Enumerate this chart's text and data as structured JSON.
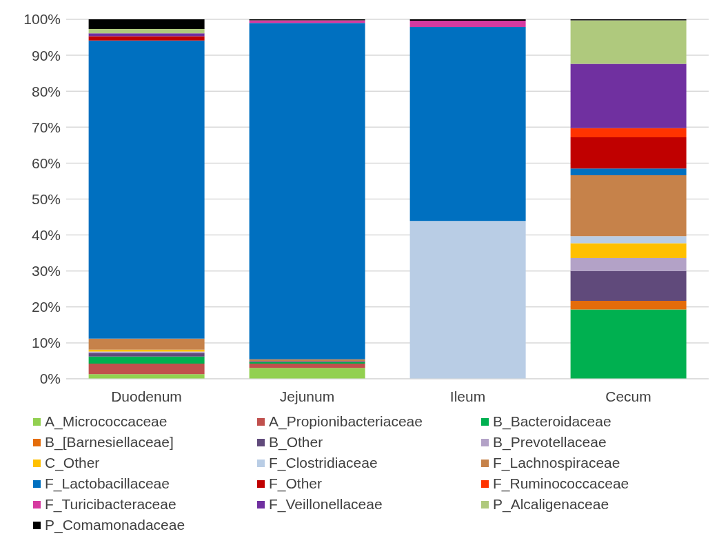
{
  "chart_data": {
    "type": "bar",
    "stacked": true,
    "categories": [
      "Duodenum",
      "Jejunum",
      "Ileum",
      "Cecum"
    ],
    "series": [
      {
        "name": "A_Micrococcaceae",
        "color": "#92d050",
        "values": [
          1.3,
          3.0,
          0,
          0
        ]
      },
      {
        "name": "A_Propionibacteriaceae",
        "color": "#c0504d",
        "values": [
          2.9,
          1.2,
          0,
          0
        ]
      },
      {
        "name": "B_Bacteroidaceae",
        "color": "#00b050",
        "values": [
          2.0,
          0.4,
          0,
          19.3
        ]
      },
      {
        "name": "B_[Barnesiellaceae]",
        "color": "#e46c0a",
        "values": [
          0,
          0,
          0,
          2.4
        ]
      },
      {
        "name": "B_Other",
        "color": "#604a7b",
        "values": [
          1.0,
          0.3,
          0,
          8.3
        ]
      },
      {
        "name": "B_Prevotellaceae",
        "color": "#b3a2c7",
        "values": [
          0.4,
          0,
          0,
          3.6
        ]
      },
      {
        "name": "C_Other",
        "color": "#ffc000",
        "values": [
          0.5,
          0,
          0,
          4.1
        ]
      },
      {
        "name": "F_Clostridiaceae",
        "color": "#b9cde5",
        "values": [
          0,
          0,
          43.9,
          2.0
        ]
      },
      {
        "name": "F_Lachnospiraceae",
        "color": "#c6824a",
        "values": [
          3.1,
          0.5,
          0,
          16.9
        ]
      },
      {
        "name": "F_Lactobacillaceae",
        "color": "#0070c0",
        "values": [
          82.9,
          93.6,
          54.0,
          1.9
        ]
      },
      {
        "name": "F_Other",
        "color": "#c00000",
        "values": [
          1.2,
          0,
          0,
          8.7
        ]
      },
      {
        "name": "F_Ruminococcaceae",
        "color": "#ff3300",
        "values": [
          0,
          0,
          0,
          2.5
        ]
      },
      {
        "name": "F_Turicibacteraceae",
        "color": "#d63aa0",
        "values": [
          0,
          0.7,
          1.7,
          0
        ]
      },
      {
        "name": "F_Veillonellaceae",
        "color": "#7030a0",
        "values": [
          0.8,
          0,
          0,
          17.9
        ]
      },
      {
        "name": "P_Alcaligenaceae",
        "color": "#afc97d",
        "values": [
          1.2,
          0,
          0,
          12.1
        ]
      },
      {
        "name": "P_Comamonadaceae",
        "color": "#000000",
        "values": [
          2.7,
          0.3,
          0.4,
          0.3
        ]
      }
    ],
    "ylim": [
      0,
      100
    ],
    "yticks": [
      {
        "value": 0,
        "label": "0%"
      },
      {
        "value": 10,
        "label": "10%"
      },
      {
        "value": 20,
        "label": "20%"
      },
      {
        "value": 30,
        "label": "30%"
      },
      {
        "value": 40,
        "label": "40%"
      },
      {
        "value": 50,
        "label": "50%"
      },
      {
        "value": 60,
        "label": "60%"
      },
      {
        "value": 70,
        "label": "70%"
      },
      {
        "value": 80,
        "label": "80%"
      },
      {
        "value": 90,
        "label": "90%"
      },
      {
        "value": 100,
        "label": "100%"
      }
    ],
    "grid": "y",
    "legend": "bottom"
  }
}
